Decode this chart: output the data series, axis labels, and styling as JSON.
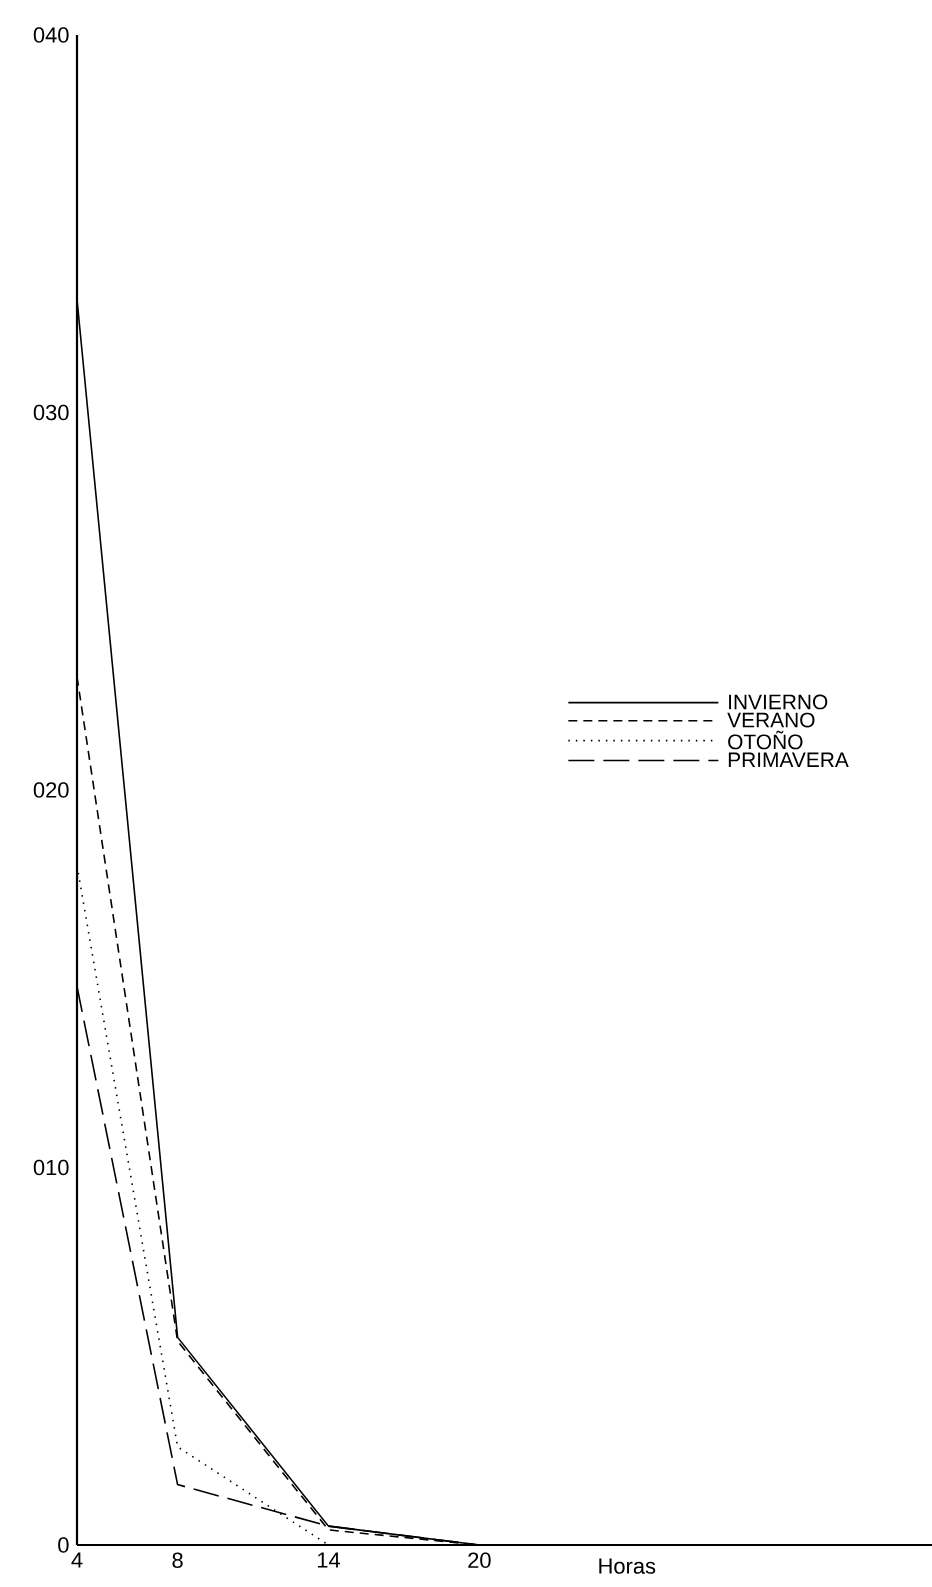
{
  "chart_data": {
    "type": "line",
    "xlabel": "Horas",
    "x": [
      4,
      8,
      14,
      20
    ],
    "series": [
      {
        "name": "INVIERNO",
        "color": "#000000",
        "line_style": "solid",
        "values": [
          33,
          5.5,
          0.5,
          0
        ]
      },
      {
        "name": "VERANO",
        "color": "#000000",
        "line_style": "dashed",
        "values": [
          23,
          5.4,
          0.4,
          0
        ]
      },
      {
        "name": "OTOÑO",
        "color": "#000000",
        "line_style": "dotted",
        "x": [
          4,
          8,
          14
        ],
        "values": [
          18,
          2.6,
          0
        ]
      },
      {
        "name": "PRIMAVERA",
        "color": "#000000",
        "line_style": "long dashed",
        "values": [
          14.8,
          1.6,
          0.5,
          0
        ]
      }
    ],
    "xlim": [
      4,
      38
    ],
    "ylim": [
      0,
      40
    ],
    "xticks": [
      4,
      8,
      14,
      20
    ],
    "yticks": [
      0,
      {
        "value": 10,
        "label": "010"
      },
      {
        "value": 20,
        "label": "020"
      },
      {
        "value": 30,
        "label": "030"
      },
      {
        "value": 40,
        "label": "040"
      }
    ],
    "legend": "right",
    "grid": false
  }
}
